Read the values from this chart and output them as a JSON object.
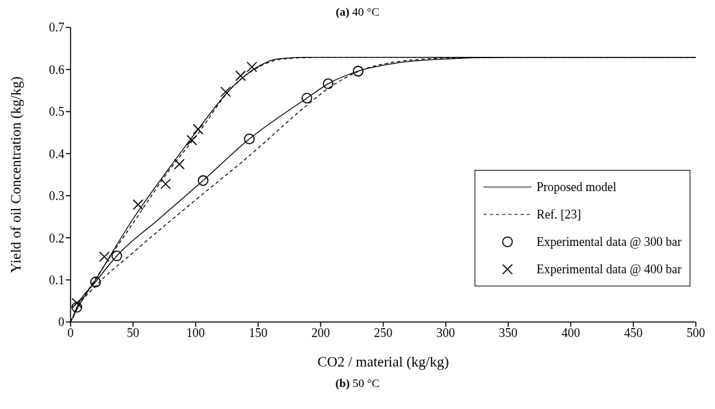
{
  "chart_data": {
    "type": "line",
    "xlabel": "CO2 / material (kg/kg)",
    "ylabel": "Yield of oil Concentration (kg/kg)",
    "annotations": [
      "(a) 40 °C",
      "(b) 50 °C"
    ],
    "xlim": [
      0,
      500
    ],
    "xticks": [
      0,
      50,
      100,
      150,
      200,
      250,
      300,
      350,
      400,
      450,
      500
    ],
    "ylim": [
      0,
      0.7
    ],
    "yticks": [
      0,
      0.1,
      0.2,
      0.3,
      0.4,
      0.5,
      0.6,
      0.7
    ],
    "grid": false,
    "legend": "right",
    "series": [
      {
        "name": "Proposed model",
        "line_style": "solid",
        "marker": "none",
        "color": "#000000",
        "x": [
          0,
          5,
          20,
          50,
          80,
          100,
          130,
          150,
          165,
          190,
          500
        ],
        "values": [
          0,
          0.03,
          0.1,
          0.245,
          0.37,
          0.45,
          0.56,
          0.607,
          0.625,
          0.629,
          0.629
        ]
      },
      {
        "name": "Ref. [23]",
        "line_style": "dashed",
        "marker": "none",
        "color": "#000000",
        "x": [
          0,
          5,
          25,
          50,
          80,
          100,
          130,
          150,
          170,
          200,
          500
        ],
        "values": [
          0,
          0.03,
          0.125,
          0.235,
          0.365,
          0.44,
          0.56,
          0.605,
          0.625,
          0.629,
          0.629
        ]
      },
      {
        "line_style": "solid",
        "marker": "none",
        "color": "#000000",
        "x": [
          2,
          5,
          20,
          37,
          70,
          106,
          143,
          189,
          206,
          230,
          260,
          300,
          350,
          500
        ],
        "values": [
          0.012,
          0.035,
          0.095,
          0.157,
          0.243,
          0.336,
          0.435,
          0.532,
          0.566,
          0.596,
          0.615,
          0.625,
          0.629,
          0.629
        ]
      },
      {
        "line_style": "dashed",
        "marker": "none",
        "color": "#000000",
        "x": [
          2,
          5,
          20,
          50,
          100,
          143,
          189,
          206,
          230,
          260,
          300,
          350,
          500
        ],
        "values": [
          0.01,
          0.03,
          0.085,
          0.165,
          0.29,
          0.395,
          0.515,
          0.555,
          0.595,
          0.618,
          0.627,
          0.629,
          0.629
        ]
      },
      {
        "name": "Experimental data @ 300 bar",
        "type": "scatter",
        "marker": "circle",
        "color": "#000000",
        "x": [
          5,
          20,
          37,
          106,
          143,
          189,
          206,
          230
        ],
        "values": [
          0.035,
          0.095,
          0.157,
          0.336,
          0.435,
          0.532,
          0.566,
          0.596
        ]
      },
      {
        "name": "Experimental data @ 400 bar",
        "type": "scatter",
        "marker": "cross",
        "color": "#000000",
        "x": [
          5,
          27,
          54,
          76,
          87,
          97,
          102,
          124,
          136,
          145
        ],
        "values": [
          0.045,
          0.155,
          0.279,
          0.328,
          0.375,
          0.432,
          0.458,
          0.547,
          0.585,
          0.606
        ]
      }
    ]
  }
}
